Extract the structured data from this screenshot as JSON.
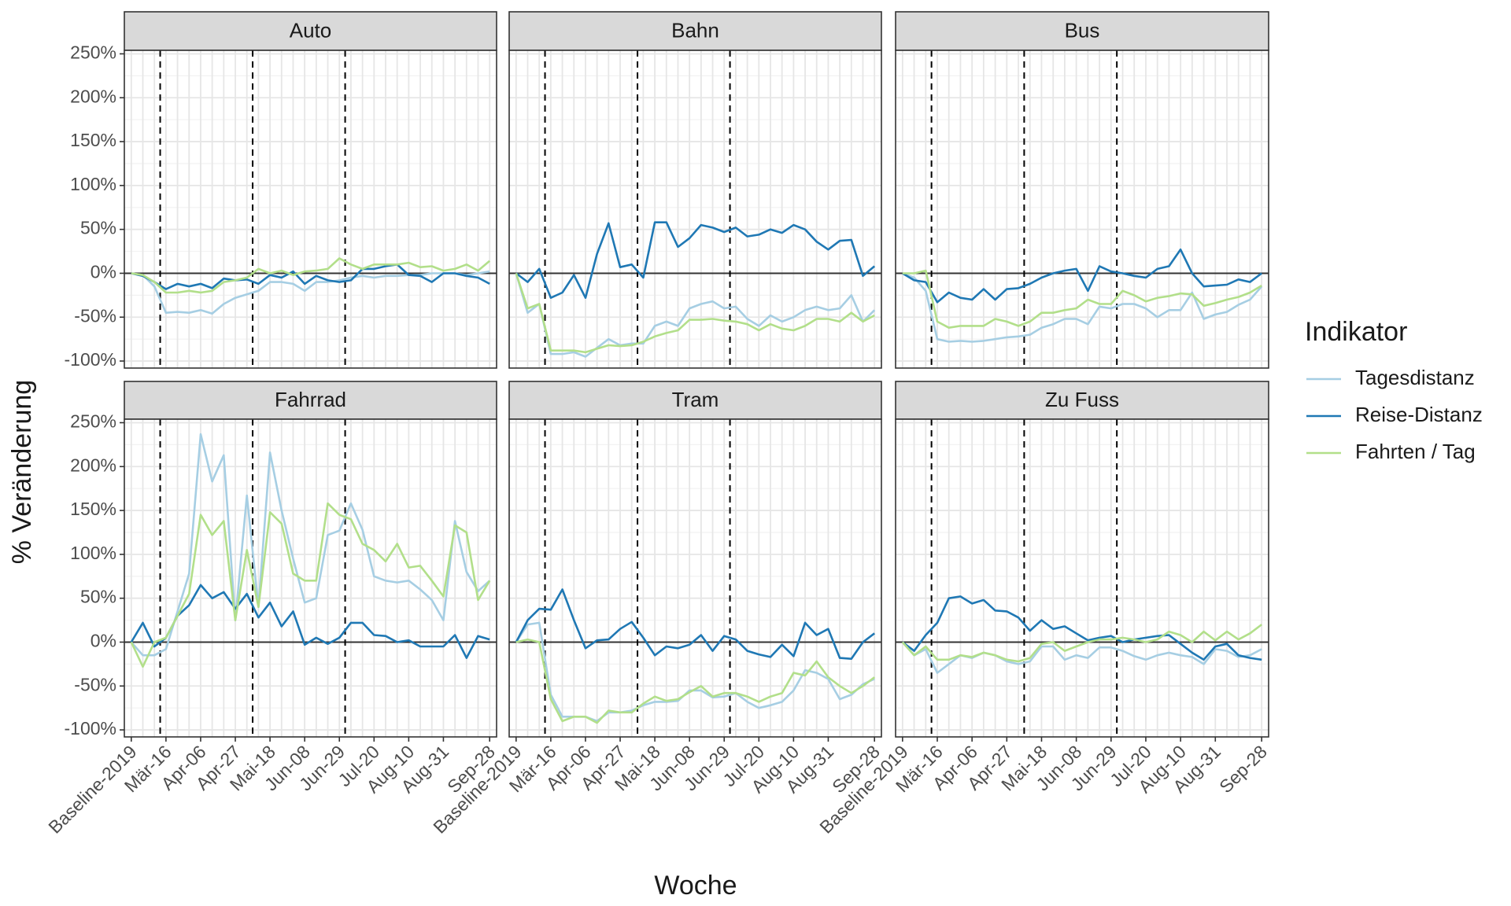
{
  "chart_data": {
    "type": "line",
    "xlabel": "Woche",
    "ylabel": "% Veränderung",
    "legend_title": "Indikator",
    "legend": "right",
    "grid": true,
    "categories": [
      "Baseline-2019",
      null,
      null,
      "Mär-16",
      null,
      null,
      "Apr-06",
      null,
      null,
      "Apr-27",
      null,
      null,
      "Mai-18",
      null,
      null,
      "Jun-08",
      null,
      null,
      "Jun-29",
      null,
      null,
      "Jul-20",
      null,
      null,
      "Aug-10",
      null,
      null,
      "Aug-31",
      null,
      null,
      null,
      "Sep-28"
    ],
    "ylim": [
      -108,
      254
    ],
    "yticks": [
      {
        "value": -100,
        "label": "-100%"
      },
      {
        "value": -50,
        "label": "-50%"
      },
      {
        "value": 0,
        "label": "0%"
      },
      {
        "value": 50,
        "label": "50%"
      },
      {
        "value": 100,
        "label": "100%"
      },
      {
        "value": 150,
        "label": "150%"
      },
      {
        "value": 200,
        "label": "200%"
      },
      {
        "value": 250,
        "label": "250%"
      }
    ],
    "hline": 0,
    "vlines": [
      2.5,
      10.5,
      18.5
    ],
    "series": [
      {
        "name": "Tagesdistanz",
        "color": "#a6cee3"
      },
      {
        "name": "Reise-Distanz",
        "color": "#1f78b4"
      },
      {
        "name": "Fahrten / Tag",
        "color": "#b2df8a"
      }
    ],
    "panels": [
      {
        "title": "Auto",
        "values": [
          [
            0,
            -2,
            -15,
            -45,
            -44,
            -45,
            -42,
            -46,
            -35,
            -28,
            -24,
            -20,
            -10,
            -10,
            -12,
            -20,
            -10,
            -10,
            -8,
            -5,
            -3,
            -5,
            -3,
            -3,
            -2,
            -2,
            0,
            0,
            0,
            -2,
            0,
            2
          ],
          [
            0,
            -3,
            -10,
            -18,
            -12,
            -15,
            -12,
            -17,
            -6,
            -8,
            -7,
            -12,
            -2,
            -5,
            2,
            -12,
            -3,
            -8,
            -10,
            -8,
            5,
            5,
            8,
            10,
            -2,
            -3,
            -10,
            0,
            0,
            -3,
            -5,
            -12
          ],
          [
            0,
            -2,
            -10,
            -22,
            -22,
            -20,
            -22,
            -20,
            -10,
            -8,
            -5,
            5,
            0,
            3,
            -2,
            2,
            3,
            5,
            17,
            10,
            5,
            10,
            10,
            10,
            12,
            7,
            8,
            3,
            5,
            10,
            3,
            14
          ]
        ]
      },
      {
        "title": "Bahn",
        "values": [
          [
            0,
            -45,
            -35,
            -92,
            -92,
            -90,
            -95,
            -85,
            -75,
            -82,
            -80,
            -80,
            -60,
            -55,
            -60,
            -40,
            -35,
            -32,
            -40,
            -38,
            -52,
            -60,
            -48,
            -55,
            -50,
            -42,
            -38,
            -42,
            -40,
            -25,
            -55,
            -42
          ],
          [
            0,
            -10,
            5,
            -28,
            -22,
            -2,
            -28,
            22,
            57,
            7,
            10,
            -5,
            58,
            58,
            30,
            40,
            55,
            52,
            47,
            52,
            42,
            44,
            50,
            46,
            55,
            50,
            36,
            27,
            37,
            38,
            -3,
            8
          ],
          [
            0,
            -40,
            -35,
            -88,
            -88,
            -88,
            -90,
            -86,
            -82,
            -83,
            -82,
            -78,
            -72,
            -68,
            -65,
            -53,
            -53,
            -52,
            -54,
            -55,
            -58,
            -65,
            -58,
            -63,
            -65,
            -60,
            -52,
            -52,
            -55,
            -45,
            -55,
            -48
          ]
        ]
      },
      {
        "title": "Bus",
        "values": [
          [
            0,
            -5,
            -20,
            -75,
            -78,
            -77,
            -78,
            -77,
            -75,
            -73,
            -72,
            -70,
            -62,
            -58,
            -52,
            -52,
            -58,
            -38,
            -40,
            -35,
            -35,
            -40,
            -50,
            -42,
            -42,
            -22,
            -52,
            -47,
            -44,
            -36,
            -30,
            -15
          ],
          [
            0,
            -8,
            -10,
            -33,
            -22,
            -28,
            -30,
            -18,
            -30,
            -18,
            -17,
            -12,
            -5,
            0,
            3,
            5,
            -20,
            8,
            2,
            0,
            -3,
            -5,
            5,
            8,
            27,
            0,
            -15,
            -14,
            -13,
            -7,
            -10,
            0
          ],
          [
            0,
            0,
            3,
            -55,
            -62,
            -60,
            -60,
            -60,
            -52,
            -55,
            -60,
            -55,
            -45,
            -45,
            -42,
            -40,
            -30,
            -35,
            -35,
            -20,
            -25,
            -32,
            -28,
            -26,
            -23,
            -24,
            -37,
            -34,
            -30,
            -27,
            -22,
            -14
          ]
        ]
      },
      {
        "title": "Fahrrad",
        "values": [
          [
            0,
            -15,
            -15,
            -8,
            35,
            78,
            237,
            183,
            213,
            25,
            167,
            40,
            216,
            150,
            95,
            45,
            50,
            122,
            127,
            158,
            128,
            75,
            70,
            68,
            70,
            60,
            48,
            25,
            138,
            80,
            58,
            70
          ],
          [
            0,
            22,
            -5,
            5,
            30,
            42,
            65,
            50,
            57,
            38,
            55,
            28,
            45,
            18,
            35,
            -3,
            5,
            -2,
            5,
            22,
            22,
            8,
            7,
            0,
            2,
            -5,
            -5,
            -5,
            8,
            -18,
            7,
            3
          ],
          [
            0,
            -28,
            0,
            5,
            30,
            55,
            145,
            122,
            138,
            25,
            105,
            40,
            148,
            135,
            78,
            70,
            70,
            158,
            145,
            140,
            112,
            105,
            92,
            112,
            85,
            87,
            70,
            52,
            133,
            125,
            48,
            70
          ]
        ]
      },
      {
        "title": "Tram",
        "values": [
          [
            0,
            20,
            22,
            -60,
            -85,
            -85,
            -85,
            -90,
            -80,
            -80,
            -78,
            -72,
            -68,
            -68,
            -67,
            -55,
            -55,
            -63,
            -62,
            -58,
            -68,
            -75,
            -72,
            -68,
            -55,
            -32,
            -35,
            -42,
            -65,
            -60,
            -48,
            -42
          ],
          [
            0,
            25,
            38,
            37,
            60,
            25,
            -7,
            2,
            3,
            15,
            23,
            5,
            -15,
            -5,
            -7,
            -3,
            8,
            -10,
            7,
            3,
            -10,
            -14,
            -17,
            -3,
            -16,
            22,
            8,
            15,
            -18,
            -19,
            0,
            10
          ],
          [
            0,
            3,
            0,
            -65,
            -90,
            -85,
            -85,
            -92,
            -78,
            -80,
            -80,
            -70,
            -62,
            -67,
            -65,
            -57,
            -50,
            -62,
            -58,
            -58,
            -62,
            -68,
            -62,
            -58,
            -35,
            -38,
            -22,
            -40,
            -50,
            -58,
            -50,
            -40
          ]
        ]
      },
      {
        "title": "Zu Fuss",
        "values": [
          [
            0,
            -15,
            -8,
            -35,
            -25,
            -15,
            -18,
            -12,
            -15,
            -22,
            -25,
            -22,
            -5,
            -5,
            -20,
            -15,
            -18,
            -6,
            -6,
            -10,
            -16,
            -20,
            -15,
            -12,
            -15,
            -17,
            -25,
            -8,
            -10,
            -17,
            -15,
            -8
          ],
          [
            0,
            -10,
            8,
            22,
            50,
            52,
            44,
            48,
            36,
            35,
            28,
            13,
            25,
            15,
            18,
            10,
            2,
            5,
            7,
            0,
            3,
            5,
            7,
            8,
            -2,
            -12,
            -20,
            -5,
            -2,
            -15,
            -18,
            -20
          ],
          [
            0,
            -15,
            -5,
            -20,
            -20,
            -15,
            -17,
            -12,
            -15,
            -20,
            -22,
            -18,
            -2,
            0,
            -10,
            -5,
            0,
            3,
            3,
            5,
            3,
            0,
            3,
            12,
            8,
            0,
            12,
            2,
            12,
            3,
            10,
            20
          ]
        ]
      }
    ]
  }
}
